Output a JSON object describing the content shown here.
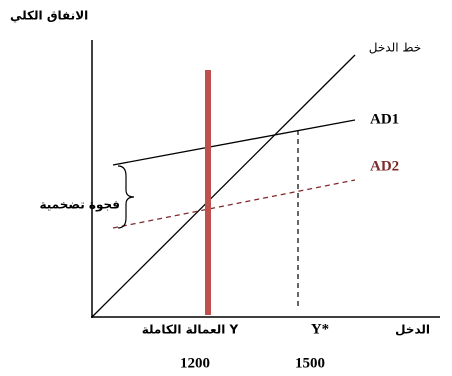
{
  "axes": {
    "y_label": "الانفاق الكلي",
    "x_label": "الدخل"
  },
  "lines": [
    {
      "label": "خط الدخل"
    },
    {
      "label": "AD1"
    },
    {
      "label": "AD2"
    }
  ],
  "gap_label": "فجوة تضخمية",
  "x_marks": [
    {
      "label": "Y العمالة الكاملة",
      "value": 1200
    },
    {
      "label": "Y*",
      "value": 1500
    }
  ]
}
